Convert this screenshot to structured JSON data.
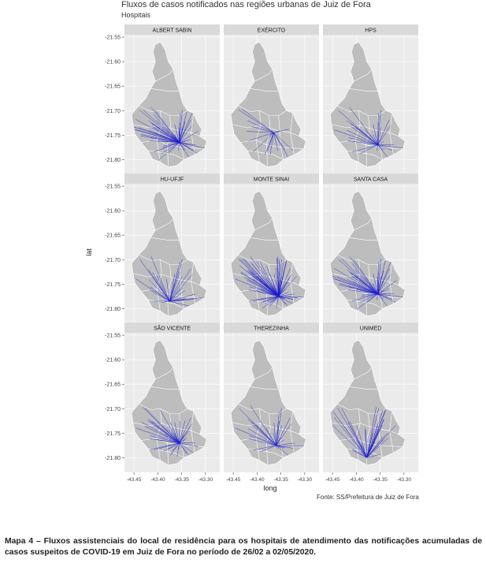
{
  "title": "Fluxos de casos notificados nas regiões urbanas de Juiz de Fora",
  "subtitle": "Hospitais",
  "xlabel": "long",
  "ylabel": "lat",
  "source": "Fonte: SS/Prefeitura de Juiz de Fora",
  "caption": "Mapa 4 – Fluxos assistenciais do local de residência para os hospitais de atendimento das notificações acumuladas de casos suspeitos de COVID-19 em Juiz de Fora no período de 26/02 a 02/05/2020.",
  "colors": {
    "panel_bg": "#ebebeb",
    "strip_bg": "#d9d9d9",
    "grid": "#ffffff",
    "region": "#bdbdbd",
    "region_border": "#ffffff",
    "flow": "#1a1acd"
  },
  "chart_data": {
    "type": "map",
    "xlim": [
      -43.47,
      -43.27
    ],
    "ylim": [
      -21.83,
      -21.545
    ],
    "x_ticks": [
      "-43.45",
      "-43.40",
      "-43.35",
      "-43.30"
    ],
    "y_ticks": [
      "-21.55",
      "-21.60",
      "-21.65",
      "-21.70",
      "-21.75",
      "-21.80"
    ],
    "facets": [
      {
        "name": "ALBERT SABIN",
        "hospital": [
          -43.355,
          -21.765
        ],
        "density": 60
      },
      {
        "name": "EXÉRCITO",
        "hospital": [
          -43.365,
          -21.745
        ],
        "density": 18
      },
      {
        "name": "HPS",
        "hospital": [
          -43.355,
          -21.77
        ],
        "density": 30
      },
      {
        "name": "HU-UFJF",
        "hospital": [
          -43.375,
          -21.785
        ],
        "density": 30
      },
      {
        "name": "MONTE SINAI",
        "hospital": [
          -43.355,
          -21.775
        ],
        "density": 90
      },
      {
        "name": "SANTA CASA",
        "hospital": [
          -43.355,
          -21.77
        ],
        "density": 60
      },
      {
        "name": "SÃO VICENTE",
        "hospital": [
          -43.355,
          -21.77
        ],
        "density": 45
      },
      {
        "name": "THEREZINHA",
        "hospital": [
          -43.36,
          -21.775
        ],
        "density": 30
      },
      {
        "name": "UNIMED",
        "hospital": [
          -43.378,
          -21.8
        ],
        "density": 35
      }
    ]
  }
}
